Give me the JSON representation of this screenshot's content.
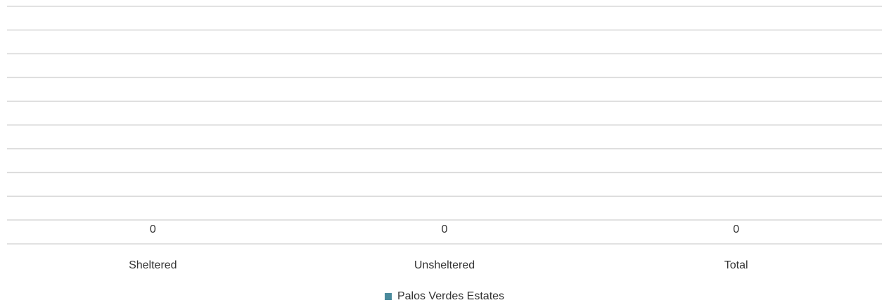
{
  "chart_data": {
    "type": "bar",
    "categories": [
      "Sheltered",
      "Unsheltered",
      "Total"
    ],
    "series": [
      {
        "name": "Palos Verdes Estates",
        "values": [
          0,
          0,
          0
        ]
      }
    ],
    "data_labels": [
      "0",
      "0",
      "0"
    ],
    "title": "",
    "xlabel": "",
    "ylabel": "",
    "ylim": [
      0,
      10
    ],
    "grid": true,
    "legend_position": "bottom-center",
    "colors": {
      "series": "#4a8a9c",
      "grid": "#d9d9d9",
      "text": "#333333"
    }
  },
  "legend": {
    "label": "Palos Verdes Estates"
  }
}
